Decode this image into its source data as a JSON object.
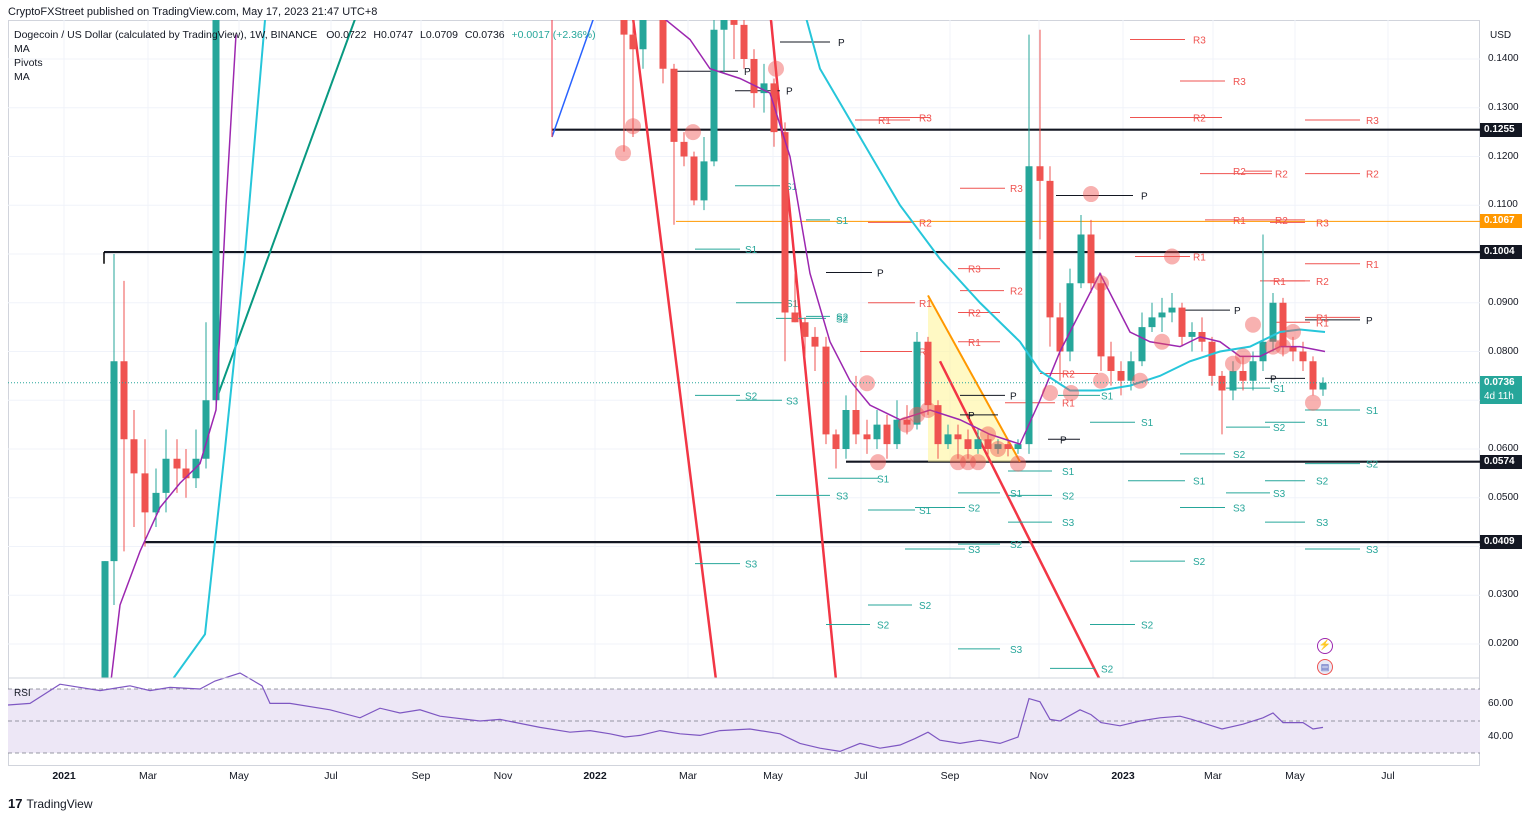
{
  "header": {
    "published": "CryptoFXStreet published on TradingView.com, May 17, 2023 21:47 UTC+8"
  },
  "legend": {
    "symbol": "Dogecoin / US Dollar (calculated by TradingView), 1W, BINANCE",
    "open": "O0.0722",
    "high": "H0.0747",
    "low": "L0.0709",
    "close": "C0.0736",
    "change": "+0.0017 (+2.36%)",
    "indicators": [
      "MA",
      "Pivots",
      "MA"
    ]
  },
  "colors": {
    "up": "#26a69a",
    "down": "#ef5350",
    "ma_fast": "#9c27b0",
    "ma_slow": "#26c6da",
    "pivot_r": "#ef5350",
    "pivot_s": "#26a69a",
    "pivot_p": "#131722",
    "level": "#000000",
    "orange_level": "#ff9800",
    "rsi": "#7e57c2",
    "rsi_band": "#ede7f6",
    "price_tag": "#26a69a"
  },
  "price_axis": {
    "currency": "USD",
    "ticks": [
      "0.1400",
      "0.1300",
      "0.1200",
      "0.1100",
      "0.1000",
      "0.0900",
      "0.0800",
      "0.0700",
      "0.0600",
      "0.0500",
      "0.0400",
      "0.0300",
      "0.0200"
    ],
    "current_price": "0.0736",
    "countdown": "4d 11h"
  },
  "levels": [
    {
      "value": "0.1255",
      "color": "#131722"
    },
    {
      "value": "0.1067",
      "color": "#ff9800"
    },
    {
      "value": "0.1004",
      "color": "#131722"
    },
    {
      "value": "0.0574",
      "color": "#131722"
    },
    {
      "value": "0.0409",
      "color": "#131722"
    }
  ],
  "time_axis": {
    "labels": [
      {
        "text": "2021",
        "bold": true
      },
      {
        "text": "Mar",
        "bold": false
      },
      {
        "text": "May",
        "bold": false
      },
      {
        "text": "Jul",
        "bold": false
      },
      {
        "text": "Sep",
        "bold": false
      },
      {
        "text": "Nov",
        "bold": false
      },
      {
        "text": "2022",
        "bold": true
      },
      {
        "text": "Mar",
        "bold": false
      },
      {
        "text": "May",
        "bold": false
      },
      {
        "text": "Jul",
        "bold": false
      },
      {
        "text": "Sep",
        "bold": false
      },
      {
        "text": "Nov",
        "bold": false
      },
      {
        "text": "2023",
        "bold": true
      },
      {
        "text": "Mar",
        "bold": false
      },
      {
        "text": "May",
        "bold": false
      },
      {
        "text": "Jul",
        "bold": false
      }
    ]
  },
  "rsi": {
    "label": "RSI",
    "ticks": [
      "60.00",
      "40.00"
    ]
  },
  "pivot_labels": {
    "p": "P",
    "r1": "R1",
    "r2": "R2",
    "r3": "R3",
    "s1": "S1",
    "s2": "S2",
    "s3": "S3"
  },
  "footer": {
    "brand": "TradingView",
    "logo": "17"
  },
  "icons": [
    "lightning-icon",
    "us-flag-icon"
  ]
}
